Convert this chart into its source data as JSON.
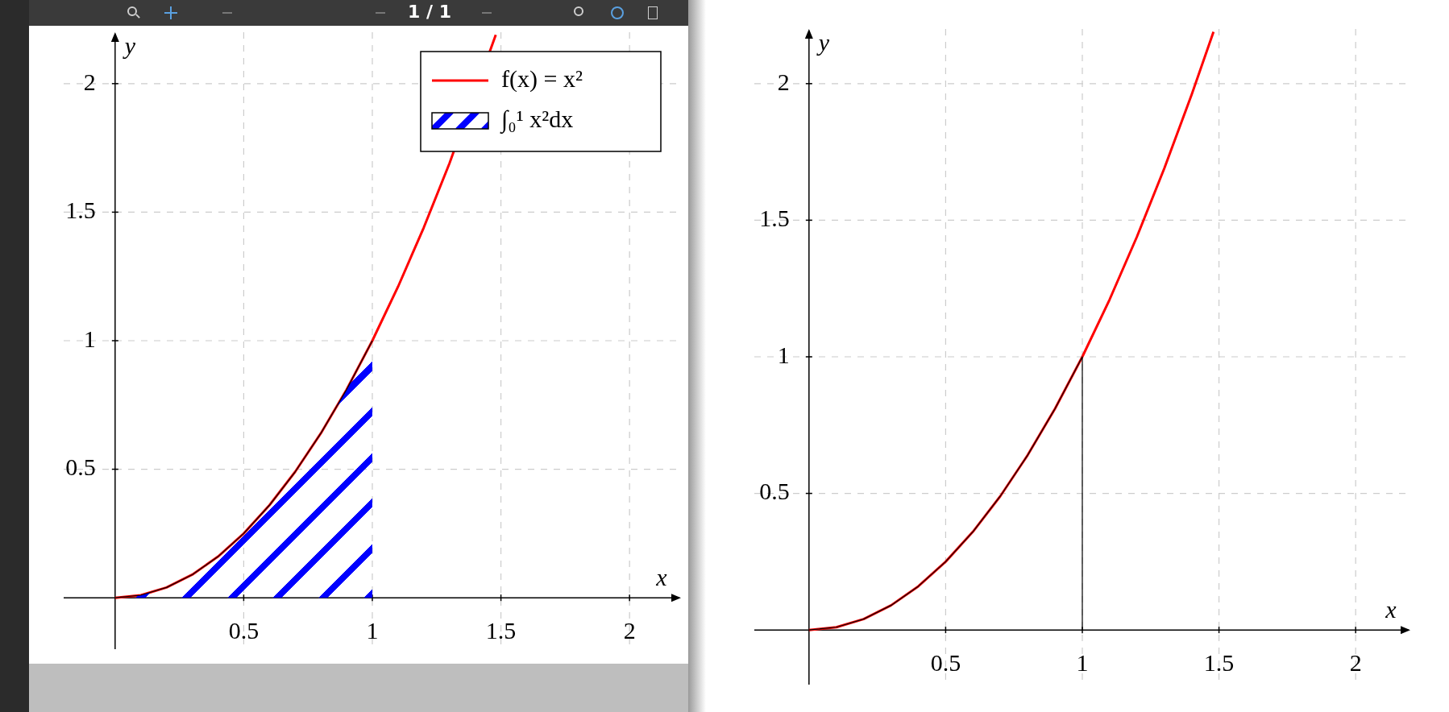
{
  "chart_data": [
    {
      "type": "line",
      "xlabel": "x",
      "ylabel": "y",
      "xlim": [
        -0.2,
        2.2
      ],
      "ylim": [
        -0.2,
        2.2
      ],
      "xticks": [
        0.5,
        1,
        1.5,
        2
      ],
      "yticks": [
        0.5,
        1,
        1.5,
        2
      ],
      "grid": true,
      "legend": "top right",
      "annotations": [
        "1 / 1"
      ],
      "series": [
        {
          "type": "line",
          "name": "f(x) = x²",
          "color": "#ff0000",
          "x": [
            0,
            0.1,
            0.2,
            0.3,
            0.4,
            0.5,
            0.6,
            0.7,
            0.8,
            0.9,
            1,
            1.1,
            1.2,
            1.3,
            1.4,
            1.48
          ],
          "values": [
            0,
            0.01,
            0.04,
            0.09,
            0.16,
            0.25,
            0.36,
            0.49,
            0.64,
            0.81,
            1,
            1.21,
            1.44,
            1.69,
            null,
            2.19
          ]
        },
        {
          "type": "area",
          "name": "∫₀¹ x²dx",
          "color": "#0000ff",
          "x": [
            0,
            0.1,
            0.2,
            0.3,
            0.4,
            0.5,
            0.6,
            0.7,
            0.8,
            0.9,
            1
          ],
          "values": [
            0,
            0.01,
            0.04,
            0.09,
            0.16,
            0.25,
            0.36,
            0.49,
            0.64,
            0.81,
            1
          ]
        }
      ]
    },
    {
      "type": "line",
      "xlabel": "x",
      "ylabel": "y",
      "xlim": [
        -0.2,
        2.2
      ],
      "ylim": [
        -0.2,
        2.2
      ],
      "xticks": [
        0.5,
        1,
        1.5,
        2
      ],
      "yticks": [
        0.5,
        1,
        1.5,
        2
      ],
      "grid": true,
      "series": [
        {
          "type": "line",
          "color": "#ff0000",
          "x": [
            0,
            0.1,
            0.2,
            0.3,
            0.4,
            0.5,
            0.6,
            0.7,
            0.8,
            0.9,
            1,
            1.1,
            1.2,
            1.3,
            1.4,
            1.48
          ],
          "values": [
            0,
            0.01,
            0.04,
            0.09,
            0.16,
            0.25,
            0.36,
            0.49,
            0.64,
            0.81,
            1,
            1.21,
            1.44,
            1.69,
            1.96,
            2.19
          ]
        },
        {
          "type": "line",
          "color": "#000000",
          "x": [
            0,
            0.1,
            0.2,
            0.3,
            0.4,
            0.5,
            0.6,
            0.7,
            0.8,
            0.9,
            1,
            1
          ],
          "values": [
            0,
            0.01,
            0.04,
            0.09,
            0.16,
            0.25,
            0.36,
            0.49,
            0.64,
            0.81,
            1,
            0
          ]
        }
      ]
    }
  ]
}
